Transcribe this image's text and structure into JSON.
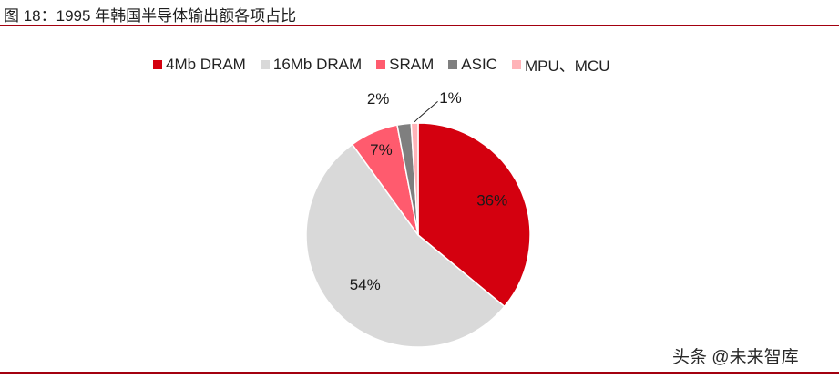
{
  "header": {
    "title": "图 18：1995 年韩国半导体输出额各项占比"
  },
  "watermark": "头条 @未来智库",
  "colors": {
    "rule": "#a3000f"
  },
  "chart_data": {
    "type": "pie",
    "title": "",
    "legend_position": "top",
    "slices": [
      {
        "label": "4Mb DRAM",
        "value": 36,
        "display": "36%",
        "color": "#d4000f"
      },
      {
        "label": "16Mb DRAM",
        "value": 54,
        "display": "54%",
        "color": "#d9d9d9"
      },
      {
        "label": "SRAM",
        "value": 7,
        "display": "7%",
        "color": "#ff5b6e"
      },
      {
        "label": "ASIC",
        "value": 2,
        "display": "2%",
        "color": "#7f7f7f"
      },
      {
        "label": "MPU、MCU",
        "value": 1,
        "display": "1%",
        "color": "#ffb3b8"
      }
    ]
  }
}
